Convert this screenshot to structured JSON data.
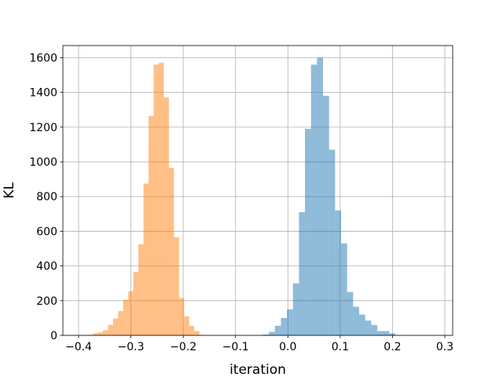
{
  "chart_data": {
    "type": "bar",
    "subtype": "overlapping histogram",
    "xlabel": "iteration",
    "ylabel": "KL",
    "xlim": [
      -0.43,
      0.315
    ],
    "ylim": [
      0,
      1670
    ],
    "grid": true,
    "xticks": [
      -0.4,
      -0.3,
      -0.2,
      -0.1,
      0.0,
      0.1,
      0.2,
      0.3
    ],
    "xtick_labels": [
      "−0.4",
      "−0.3",
      "−0.2",
      "−0.1",
      "0.0",
      "0.1",
      "0.2",
      "0.3"
    ],
    "yticks": [
      0,
      200,
      400,
      600,
      800,
      1000,
      1200,
      1400,
      1600
    ],
    "ytick_labels": [
      "0",
      "200",
      "400",
      "600",
      "800",
      "1000",
      "1200",
      "1400",
      "1600"
    ],
    "series": [
      {
        "color": "#1f77b4",
        "alpha": 0.5,
        "bin_width": 0.0115,
        "bin_edges_start": -0.0478,
        "counts": [
          5,
          20,
          55,
          100,
          150,
          300,
          710,
          1190,
          1560,
          1600,
          1380,
          1070,
          720,
          530,
          250,
          165,
          120,
          85,
          60,
          25,
          25,
          12
        ]
      },
      {
        "color": "#ff7f0e",
        "alpha": 0.5,
        "bin_width": 0.0097,
        "bin_edges_start": -0.3826,
        "counts": [
          3,
          12,
          17,
          30,
          60,
          97,
          140,
          205,
          255,
          365,
          525,
          875,
          1265,
          1560,
          1570,
          1370,
          965,
          565,
          215,
          110,
          55,
          25,
          3
        ]
      }
    ]
  }
}
